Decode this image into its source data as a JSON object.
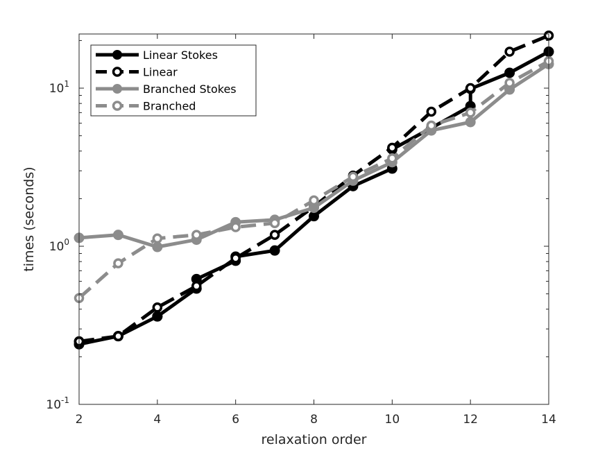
{
  "chart_data": {
    "type": "line",
    "xlabel": "relaxation order",
    "ylabel": "times (seconds)",
    "xlim": [
      2,
      14
    ],
    "ylim": [
      0.1,
      22
    ],
    "y_scale": "log",
    "x_ticks": [
      2,
      4,
      6,
      8,
      10,
      12,
      14
    ],
    "y_ticks": [
      {
        "value": 0.1,
        "base": "10",
        "exp": "-1"
      },
      {
        "value": 1,
        "base": "10",
        "exp": "0"
      },
      {
        "value": 10,
        "base": "10",
        "exp": "1"
      }
    ],
    "grid": false,
    "legend_position": "top-left",
    "series": [
      {
        "name": "Linear Stokes",
        "color": "#000000",
        "dash": "solid",
        "marker": "filled-circle",
        "points": [
          [
            2,
            0.25
          ],
          [
            2,
            0.24
          ],
          [
            3,
            0.27
          ],
          [
            3,
            0.27
          ],
          [
            4,
            0.36
          ],
          [
            4,
            0.36
          ],
          [
            5,
            0.54
          ],
          [
            5,
            0.62
          ],
          [
            6,
            0.81
          ],
          [
            6,
            0.86
          ],
          [
            7,
            0.94
          ],
          [
            8,
            1.55
          ],
          [
            9,
            2.4
          ],
          [
            10,
            3.1
          ],
          [
            10,
            4.1
          ],
          [
            11,
            5.6
          ],
          [
            12,
            7.7
          ],
          [
            12,
            9.9
          ],
          [
            13,
            12.5
          ],
          [
            14,
            17.0
          ]
        ]
      },
      {
        "name": "Linear",
        "color": "#000000",
        "dash": "dashed",
        "marker": "open-circle",
        "points": [
          [
            2,
            0.25
          ],
          [
            3,
            0.27
          ],
          [
            4,
            0.41
          ],
          [
            5,
            0.56
          ],
          [
            6,
            0.84
          ],
          [
            7,
            1.18
          ],
          [
            8,
            1.78
          ],
          [
            9,
            2.8
          ],
          [
            10,
            4.2
          ],
          [
            11,
            7.1
          ],
          [
            12,
            10.0
          ],
          [
            13,
            17.0
          ],
          [
            14,
            21.5
          ]
        ]
      },
      {
        "name": "Branched Stokes",
        "color": "#8c8c8c",
        "dash": "solid",
        "marker": "filled-circle",
        "points": [
          [
            2,
            1.13
          ],
          [
            3,
            1.18
          ],
          [
            4,
            0.99
          ],
          [
            5,
            1.1
          ],
          [
            6,
            1.42
          ],
          [
            7,
            1.47
          ],
          [
            8,
            1.75
          ],
          [
            9,
            2.6
          ],
          [
            10,
            3.4
          ],
          [
            11,
            5.4
          ],
          [
            12,
            6.1
          ],
          [
            13,
            9.8
          ],
          [
            14,
            14.2
          ]
        ]
      },
      {
        "name": "Branched",
        "color": "#8c8c8c",
        "dash": "dashed",
        "marker": "open-circle",
        "points": [
          [
            2,
            0.47
          ],
          [
            3,
            0.78
          ],
          [
            4,
            1.12
          ],
          [
            5,
            1.18
          ],
          [
            6,
            1.32
          ],
          [
            7,
            1.4
          ],
          [
            8,
            1.95
          ],
          [
            9,
            2.75
          ],
          [
            10,
            3.6
          ],
          [
            11,
            5.8
          ],
          [
            12,
            7.0
          ],
          [
            13,
            10.8
          ],
          [
            14,
            14.8
          ]
        ]
      }
    ]
  }
}
